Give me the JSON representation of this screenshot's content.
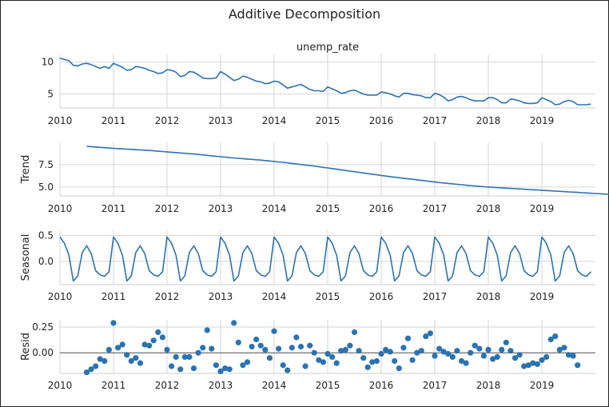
{
  "figure": {
    "title": "Additive Decomposition"
  },
  "chart_data": [
    {
      "type": "line",
      "title": "unemp_rate",
      "ylabel": "",
      "xlim": [
        2010.0,
        2020.0
      ],
      "ylim": [
        2.8,
        11.2
      ],
      "yticks": [
        5,
        10
      ],
      "ytick_labels": [
        "5",
        "10"
      ],
      "xticks": [
        2010,
        2011,
        2012,
        2013,
        2014,
        2015,
        2016,
        2017,
        2018,
        2019
      ],
      "xtick_labels": [
        "2010",
        "2011",
        "2012",
        "2013",
        "2014",
        "2015",
        "2016",
        "2017",
        "2018",
        "2019"
      ],
      "grid": true,
      "color": "#2a73b2",
      "x_start": 2010.0,
      "x_step": 0.0833333,
      "values": [
        10.6,
        10.4,
        10.2,
        9.5,
        9.4,
        9.7,
        9.8,
        9.6,
        9.3,
        9.0,
        9.3,
        9.0,
        9.8,
        9.5,
        9.2,
        8.7,
        8.8,
        9.3,
        9.2,
        9.0,
        8.7,
        8.5,
        8.2,
        8.3,
        8.8,
        8.7,
        8.4,
        7.7,
        7.9,
        8.5,
        8.4,
        8.0,
        7.5,
        7.4,
        7.4,
        7.5,
        8.5,
        8.1,
        7.6,
        7.1,
        7.3,
        7.8,
        7.6,
        7.3,
        7.0,
        6.9,
        6.6,
        6.7,
        7.0,
        6.9,
        6.4,
        5.9,
        6.1,
        6.3,
        6.5,
        6.1,
        5.7,
        5.5,
        5.5,
        5.4,
        6.1,
        5.8,
        5.5,
        5.1,
        5.2,
        5.5,
        5.6,
        5.3,
        5.0,
        4.8,
        4.8,
        4.8,
        5.3,
        5.2,
        5.0,
        4.7,
        4.5,
        5.1,
        5.1,
        4.9,
        4.8,
        4.7,
        4.4,
        4.4,
        5.1,
        4.9,
        4.5,
        3.9,
        4.1,
        4.5,
        4.6,
        4.4,
        4.1,
        3.9,
        3.9,
        3.9,
        4.4,
        4.4,
        4.1,
        3.6,
        3.6,
        4.2,
        4.1,
        3.9,
        3.6,
        3.5,
        3.5,
        3.6,
        4.4,
        4.1,
        3.8,
        3.3,
        3.4,
        3.8,
        4.0,
        3.8,
        3.3,
        3.3,
        3.3,
        3.4
      ]
    },
    {
      "type": "line",
      "title": "",
      "ylabel": "Trend",
      "xlim": [
        2010.0,
        2020.0
      ],
      "ylim": [
        4.0,
        10.0
      ],
      "yticks": [
        5.0,
        7.5
      ],
      "ytick_labels": [
        "5.0",
        "7.5"
      ],
      "xticks": [
        2010,
        2011,
        2012,
        2013,
        2014,
        2015,
        2016,
        2017,
        2018,
        2019
      ],
      "xtick_labels": [
        "2010",
        "2011",
        "2012",
        "2013",
        "2014",
        "2015",
        "2016",
        "2017",
        "2018",
        "2019"
      ],
      "grid": true,
      "color": "#2a73b2",
      "x_start": 2010.5,
      "x_step": 0.0833333,
      "values": [
        9.55,
        9.52,
        9.48,
        9.44,
        9.4,
        9.36,
        9.33,
        9.3,
        9.27,
        9.24,
        9.21,
        9.18,
        9.15,
        9.12,
        9.09,
        9.05,
        9.01,
        8.97,
        8.93,
        8.89,
        8.85,
        8.81,
        8.77,
        8.73,
        8.69,
        8.64,
        8.59,
        8.54,
        8.49,
        8.44,
        8.39,
        8.34,
        8.29,
        8.25,
        8.21,
        8.17,
        8.13,
        8.09,
        8.05,
        8.01,
        7.96,
        7.91,
        7.86,
        7.81,
        7.76,
        7.7,
        7.64,
        7.58,
        7.52,
        7.46,
        7.4,
        7.34,
        7.27,
        7.2,
        7.13,
        7.06,
        6.99,
        6.92,
        6.85,
        6.78,
        6.71,
        6.64,
        6.57,
        6.5,
        6.43,
        6.36,
        6.29,
        6.22,
        6.16,
        6.1,
        6.04,
        5.98,
        5.92,
        5.86,
        5.8,
        5.74,
        5.68,
        5.62,
        5.56,
        5.5,
        5.45,
        5.4,
        5.35,
        5.3,
        5.25,
        5.2,
        5.15,
        5.11,
        5.07,
        5.03,
        4.99,
        4.96,
        4.93,
        4.9,
        4.87,
        4.84,
        4.81,
        4.78,
        4.75,
        4.72,
        4.69,
        4.66,
        4.63,
        4.6,
        4.57,
        4.54,
        4.51,
        4.48,
        4.45,
        4.42,
        4.39,
        4.36,
        4.33,
        4.3,
        4.27,
        4.24,
        4.21,
        4.18,
        4.15,
        4.12,
        4.09,
        4.06,
        4.03,
        4.0,
        3.97,
        3.94,
        3.91,
        3.88,
        3.86,
        3.84,
        3.82,
        3.8,
        3.78,
        3.76
      ]
    },
    {
      "type": "line",
      "title": "",
      "ylabel": "Seasonal",
      "xlim": [
        2010.0,
        2020.0
      ],
      "ylim": [
        -0.45,
        0.6
      ],
      "yticks": [
        0.0,
        0.5
      ],
      "ytick_labels": [
        "0.0",
        "0.5"
      ],
      "xticks": [
        2010,
        2011,
        2012,
        2013,
        2014,
        2015,
        2016,
        2017,
        2018,
        2019
      ],
      "xtick_labels": [
        "2010",
        "2011",
        "2012",
        "2013",
        "2014",
        "2015",
        "2016",
        "2017",
        "2018",
        "2019"
      ],
      "grid": true,
      "color": "#2a73b2",
      "x_start": 2010.0,
      "x_step": 0.0833333,
      "pattern": [
        0.47,
        0.35,
        0.12,
        -0.38,
        -0.28,
        0.17,
        0.3,
        0.15,
        -0.18,
        -0.26,
        -0.29,
        -0.2
      ],
      "repeats": 10
    },
    {
      "type": "scatter",
      "title": "",
      "ylabel": "Resid",
      "xlim": [
        2010.0,
        2020.0
      ],
      "ylim": [
        -0.2,
        0.32
      ],
      "yticks": [
        0.0,
        0.25
      ],
      "ytick_labels": [
        "0.00",
        "0.25"
      ],
      "xticks": [
        2010,
        2011,
        2012,
        2013,
        2014,
        2015,
        2016,
        2017,
        2018,
        2019
      ],
      "xtick_labels": [
        "2010",
        "2011",
        "2012",
        "2013",
        "2014",
        "2015",
        "2016",
        "2017",
        "2018",
        "2019"
      ],
      "grid": true,
      "baseline": 0.0,
      "color": "#2a73b2",
      "x_start": 2010.5,
      "x_step": 0.0833333,
      "values": [
        -0.19,
        -0.16,
        -0.13,
        -0.06,
        -0.08,
        0.03,
        0.29,
        0.05,
        0.08,
        -0.02,
        -0.08,
        -0.05,
        -0.1,
        0.08,
        0.07,
        0.12,
        0.2,
        0.15,
        0.03,
        -0.13,
        -0.04,
        -0.16,
        -0.04,
        -0.04,
        -0.15,
        0.0,
        0.05,
        0.22,
        0.04,
        -0.12,
        -0.18,
        -0.15,
        -0.16,
        0.29,
        0.1,
        -0.12,
        -0.09,
        0.06,
        0.13,
        0.07,
        0.03,
        -0.05,
        0.21,
        0.04,
        -0.12,
        -0.17,
        0.05,
        0.15,
        0.06,
        -0.13,
        0.07,
        0.0,
        -0.07,
        -0.09,
        -0.01,
        -0.04,
        -0.1,
        0.02,
        0.03,
        0.07,
        0.2,
        0.02,
        -0.05,
        -0.14,
        -0.09,
        -0.08,
        -0.01,
        0.03,
        0.01,
        -0.08,
        -0.15,
        0.05,
        0.14,
        -0.07,
        0.0,
        0.02,
        0.16,
        0.19,
        -0.03,
        0.04,
        0.01,
        -0.01,
        -0.04,
        0.02,
        -0.08,
        -0.1,
        0.0,
        0.07,
        0.04,
        -0.03,
        0.03,
        -0.06,
        -0.04,
        0.03,
        0.1,
        0.02,
        -0.05,
        -0.02,
        -0.13,
        -0.12,
        -0.1,
        -0.11,
        -0.07,
        -0.04,
        0.13,
        0.16,
        0.03,
        0.05,
        -0.02,
        -0.03,
        -0.12
      ]
    }
  ]
}
